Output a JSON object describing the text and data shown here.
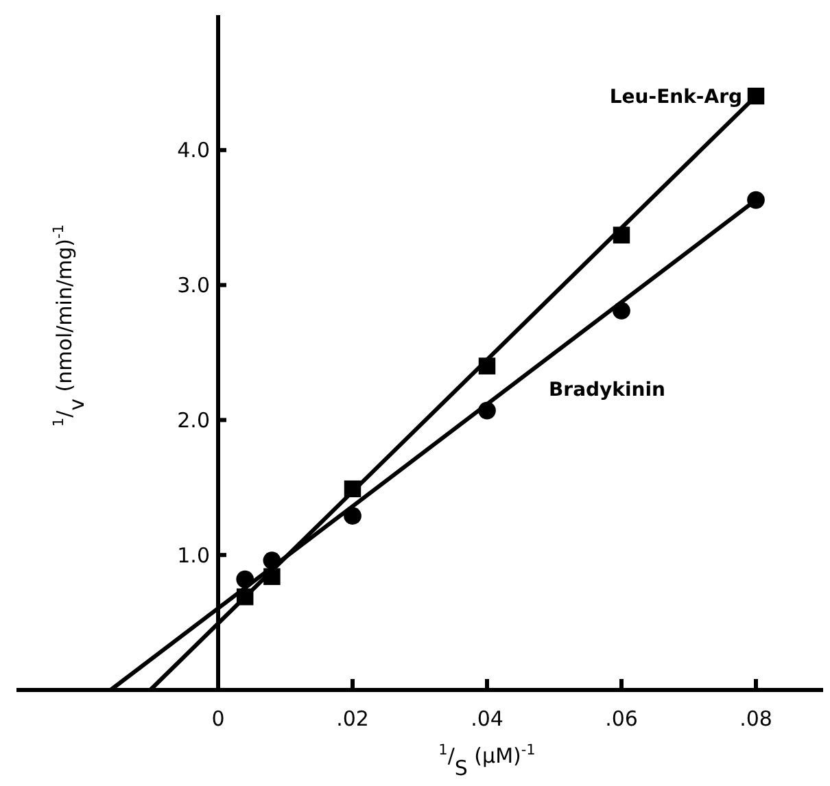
{
  "chart_data": {
    "type": "scatter",
    "xlabel": "$^{1}$/$_{S}$ (μM)$^{-1}$",
    "ylabel": "$^{1}$/$_{v}$ (nmol/min/mg)$^{-1}$",
    "xlim": [
      -0.03,
      0.09
    ],
    "ylim": [
      0,
      5.0
    ],
    "xticks": [
      {
        "value": 0,
        "label": "0"
      },
      {
        "value": 0.02,
        "label": ".02"
      },
      {
        "value": 0.04,
        "label": ".04"
      },
      {
        "value": 0.06,
        "label": ".06"
      },
      {
        "value": 0.08,
        "label": ".08"
      }
    ],
    "yticks": [
      {
        "value": 1,
        "label": "1.0"
      },
      {
        "value": 2,
        "label": "2.0"
      },
      {
        "value": 3,
        "label": "3.0"
      },
      {
        "value": 4,
        "label": "4.0"
      }
    ],
    "grid": false,
    "series": [
      {
        "name": "Leu-Enk-Arg",
        "marker": "square",
        "color": "#000000",
        "x": [
          0.004,
          0.008,
          0.02,
          0.04,
          0.06,
          0.08
        ],
        "values": [
          0.69,
          0.84,
          1.49,
          2.4,
          3.37,
          4.4
        ]
      },
      {
        "name": "Bradykinin",
        "marker": "circle",
        "color": "#000000",
        "x": [
          0.004,
          0.008,
          0.02,
          0.04,
          0.06,
          0.08
        ],
        "values": [
          0.82,
          0.96,
          1.29,
          2.07,
          2.81,
          3.63
        ]
      },
      {
        "type": "line",
        "marker": "none",
        "line_style": "solid",
        "color": "#000000",
        "x": [
          -0.0101,
          0.08
        ],
        "values": [
          0,
          4.4
        ]
      },
      {
        "type": "line",
        "marker": "none",
        "line_style": "solid",
        "color": "#000000",
        "x": [
          -0.016,
          0.08
        ],
        "values": [
          0,
          3.63
        ]
      }
    ]
  }
}
